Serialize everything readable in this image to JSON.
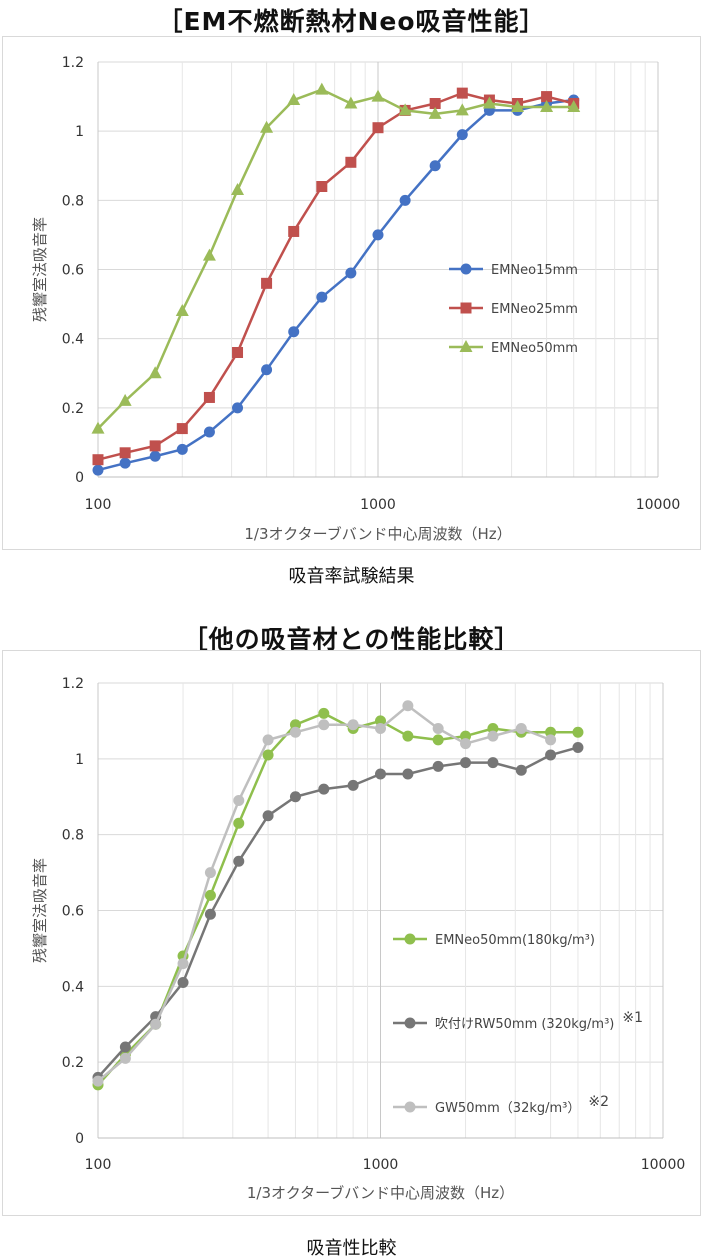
{
  "charts": {
    "c1": {
      "section_title": "［EM不燃断熱材Neo吸音性能］",
      "caption": "吸音率試験結果"
    },
    "c2": {
      "section_title": "［他の吸音材との性能比較］",
      "caption": "吸音性比較"
    }
  },
  "chart_data": [
    {
      "type": "line",
      "title": "",
      "xlabel": "1/3オクターブバンド中心周波数（Hz）",
      "ylabel": "残響室法吸音率",
      "xscale": "log",
      "xlim": [
        100,
        10000
      ],
      "ylim": [
        0,
        1.2
      ],
      "yticks": [
        "0",
        "0.2",
        "0.4",
        "0.6",
        "0.8",
        "1",
        "1.2"
      ],
      "xticks": [
        "100",
        "1000",
        "10000"
      ],
      "grid": true,
      "legend_position": "right-middle",
      "x": [
        100,
        125,
        160,
        200,
        250,
        315,
        400,
        500,
        630,
        800,
        1000,
        1250,
        1600,
        2000,
        2500,
        3150,
        4000,
        5000
      ],
      "series": [
        {
          "name": "EMNeo15mm",
          "color": "#4472c4",
          "marker": "circle",
          "values": [
            0.02,
            0.04,
            0.06,
            0.08,
            0.13,
            0.2,
            0.31,
            0.42,
            0.52,
            0.59,
            0.7,
            0.8,
            0.9,
            0.99,
            1.06,
            1.06,
            1.08,
            1.09
          ]
        },
        {
          "name": "EMNeo25mm",
          "color": "#c0504d",
          "marker": "square",
          "values": [
            0.05,
            0.07,
            0.09,
            0.14,
            0.23,
            0.36,
            0.56,
            0.71,
            0.84,
            0.91,
            1.01,
            1.06,
            1.08,
            1.11,
            1.09,
            1.08,
            1.1,
            1.08
          ]
        },
        {
          "name": "EMNeo50mm",
          "color": "#9bbb59",
          "marker": "triangle",
          "values": [
            0.14,
            0.22,
            0.3,
            0.48,
            0.64,
            0.83,
            1.01,
            1.09,
            1.12,
            1.08,
            1.1,
            1.06,
            1.05,
            1.06,
            1.08,
            1.07,
            1.07,
            1.07
          ]
        }
      ]
    },
    {
      "type": "line",
      "title": "",
      "xlabel": "1/3オクターブバンド中心周波数（Hz）",
      "ylabel": "残響室法吸音率",
      "xscale": "log",
      "xlim": [
        100,
        10000
      ],
      "ylim": [
        0,
        1.2
      ],
      "yticks": [
        "0",
        "0.2",
        "0.4",
        "0.6",
        "0.8",
        "1",
        "1.2"
      ],
      "xticks": [
        "100",
        "1000",
        "10000"
      ],
      "grid": true,
      "legend_position": "right-middle",
      "x": [
        100,
        125,
        160,
        200,
        250,
        315,
        400,
        500,
        630,
        800,
        1000,
        1250,
        1600,
        2000,
        2500,
        3150,
        4000,
        5000
      ],
      "series": [
        {
          "name": "EMNeo50mm(180kg/m³)",
          "note": "",
          "color": "#8fbf4d",
          "marker": "circle",
          "values": [
            0.14,
            0.22,
            0.3,
            0.48,
            0.64,
            0.83,
            1.01,
            1.09,
            1.12,
            1.08,
            1.1,
            1.06,
            1.05,
            1.06,
            1.08,
            1.07,
            1.07,
            1.07
          ]
        },
        {
          "name": "吹付けRW50mm (320kg/m³)",
          "note": "※1",
          "color": "#767676",
          "marker": "circle",
          "values": [
            0.16,
            0.24,
            0.32,
            0.41,
            0.59,
            0.73,
            0.85,
            0.9,
            0.92,
            0.93,
            0.96,
            0.96,
            0.98,
            0.99,
            0.99,
            0.97,
            1.01,
            1.03
          ]
        },
        {
          "name": "GW50mm（32kg/m³）",
          "note": "※2",
          "color": "#bfbfbf",
          "marker": "circle",
          "values": [
            0.15,
            0.21,
            0.3,
            0.46,
            0.7,
            0.89,
            1.05,
            1.07,
            1.09,
            1.09,
            1.08,
            1.14,
            1.08,
            1.04,
            1.06,
            1.08,
            1.05,
            null
          ]
        }
      ]
    }
  ]
}
